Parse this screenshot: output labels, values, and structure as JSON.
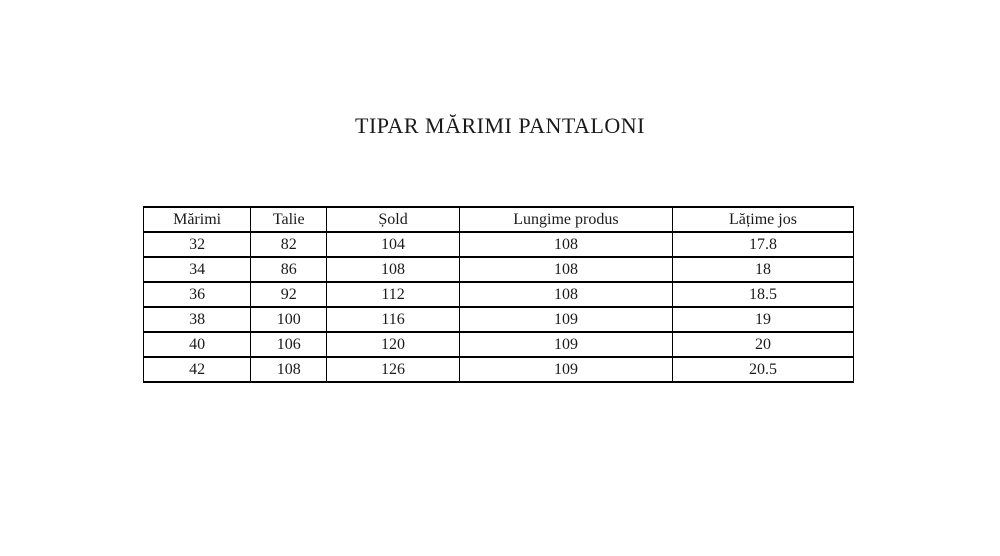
{
  "page": {
    "background_color": "#ffffff",
    "text_color": "#1a1a1a",
    "border_color": "#000000"
  },
  "title": "TIPAR MĂRIMI PANTALONI",
  "table": {
    "headers": [
      "Mărimi",
      "Talie",
      "Șold",
      "Lungime produs",
      "Lățime jos"
    ],
    "rows": [
      [
        "32",
        "82",
        "104",
        "108",
        "17.8"
      ],
      [
        "34",
        "86",
        "108",
        "108",
        "18"
      ],
      [
        "36",
        "92",
        "112",
        "108",
        "18.5"
      ],
      [
        "38",
        "100",
        "116",
        "109",
        "19"
      ],
      [
        "40",
        "106",
        "120",
        "109",
        "20"
      ],
      [
        "42",
        "108",
        "126",
        "109",
        "20.5"
      ]
    ]
  }
}
